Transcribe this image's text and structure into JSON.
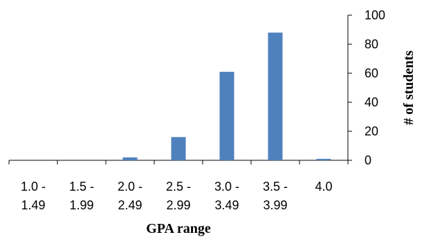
{
  "chart_data": {
    "type": "bar",
    "categories": [
      [
        "1.0 -",
        "1.49"
      ],
      [
        "1.5 -",
        "1.99"
      ],
      [
        "2.0 -",
        "2.49"
      ],
      [
        "2.5 -",
        "2.99"
      ],
      [
        "3.0 -",
        "3.49"
      ],
      [
        "3.5 -",
        "3.99"
      ],
      [
        "4.0",
        ""
      ]
    ],
    "values": [
      0,
      0,
      2,
      16,
      61,
      88,
      1
    ],
    "xlabel": "GPA range",
    "ylabel": "# of students",
    "ylim": [
      0,
      100
    ],
    "yticks": [
      0,
      20,
      40,
      60,
      80,
      100
    ],
    "y_axis_side": "right",
    "grid": false,
    "legend": "none",
    "bar_color": "#4F81BD",
    "axis_color": "#000000"
  }
}
